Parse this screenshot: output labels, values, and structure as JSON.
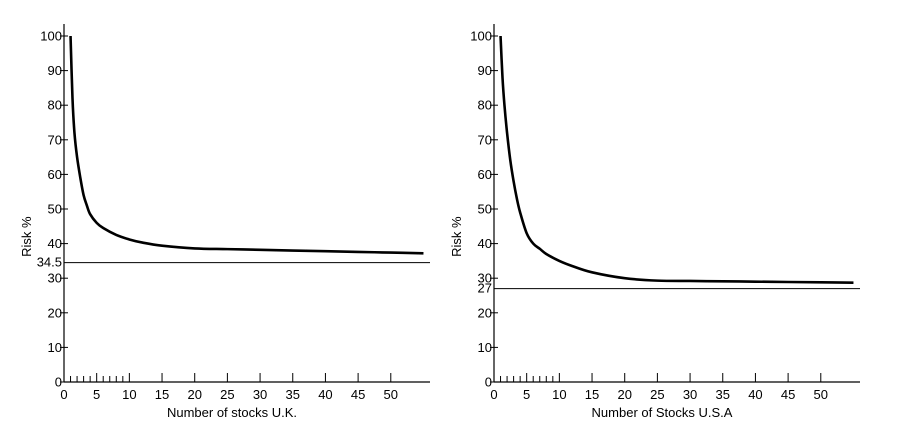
{
  "chart_data": [
    {
      "type": "line",
      "xlabel": "Number of stocks U.K.",
      "ylabel": "Risk %",
      "x_ticks": [
        0,
        5,
        10,
        15,
        20,
        25,
        30,
        35,
        40,
        45,
        50
      ],
      "y_ticks": [
        0,
        10,
        20,
        30,
        40,
        50,
        60,
        70,
        80,
        90,
        100
      ],
      "xlim": [
        0,
        56
      ],
      "ylim": [
        0,
        100
      ],
      "grid": false,
      "reference_line": {
        "value": 34.5,
        "label": "34.5"
      },
      "series": [
        {
          "x": [
            1,
            1.3,
            1.6,
            2,
            2.5,
            3,
            3.5,
            4,
            5,
            6,
            8,
            10,
            12,
            15,
            20,
            25,
            30,
            35,
            40,
            45,
            50,
            55
          ],
          "y": [
            100,
            82,
            72,
            65,
            59,
            54,
            51,
            48.5,
            46,
            44.5,
            42.5,
            41.2,
            40.3,
            39.4,
            38.6,
            38.4,
            38.2,
            38.0,
            37.8,
            37.6,
            37.4,
            37.2
          ]
        }
      ]
    },
    {
      "type": "line",
      "xlabel": "Number of Stocks U.S.A",
      "ylabel": "Risk %",
      "x_ticks": [
        0,
        5,
        10,
        15,
        20,
        25,
        30,
        35,
        40,
        45,
        50
      ],
      "y_ticks": [
        0,
        10,
        20,
        30,
        40,
        50,
        60,
        70,
        80,
        90,
        100
      ],
      "xlim": [
        0,
        56
      ],
      "ylim": [
        0,
        100
      ],
      "grid": false,
      "reference_line": {
        "value": 27,
        "label": "27"
      },
      "series": [
        {
          "x": [
            1,
            1.3,
            1.6,
            2,
            2.5,
            3,
            3.5,
            4,
            5,
            6,
            7,
            8,
            10,
            12,
            15,
            20,
            25,
            30,
            35,
            40,
            45,
            50,
            55
          ],
          "y": [
            100,
            88,
            80,
            72,
            64,
            58,
            53,
            49,
            43,
            40,
            38.5,
            37,
            35,
            33.5,
            31.7,
            30,
            29.3,
            29.2,
            29.1,
            29.0,
            28.9,
            28.8,
            28.7
          ]
        }
      ]
    }
  ]
}
